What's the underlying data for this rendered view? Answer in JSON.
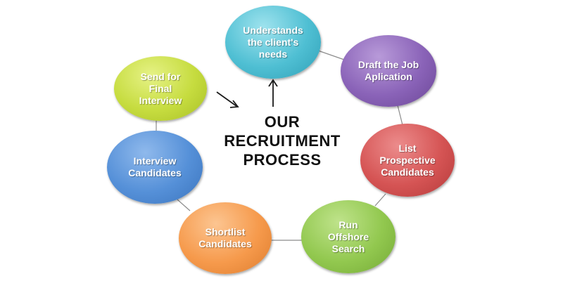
{
  "title_lines": [
    "OUR",
    "RECRUITMENT",
    "PROCESS"
  ],
  "steps": [
    {
      "label": "Understands\nthe client's\nneeds"
    },
    {
      "label": "Draft the Job\nAplication"
    },
    {
      "label": "List\nProspective\nCandidates"
    },
    {
      "label": "Run\nOffshore\nSearch"
    },
    {
      "label": "Shortlist\nCandidates"
    },
    {
      "label": "Interview\nCandidates"
    },
    {
      "label": "Send for\nFinal\nInterview"
    }
  ],
  "colors": {
    "step_1": "#4fbfd3",
    "step_2": "#8a63b8",
    "step_3": "#d55454",
    "step_4": "#92c84f",
    "step_5": "#f69a4c",
    "step_6": "#5590d8",
    "step_7": "#c6dc3f",
    "connector": "#8c8c8c",
    "arrow": "#1a1a1a"
  }
}
